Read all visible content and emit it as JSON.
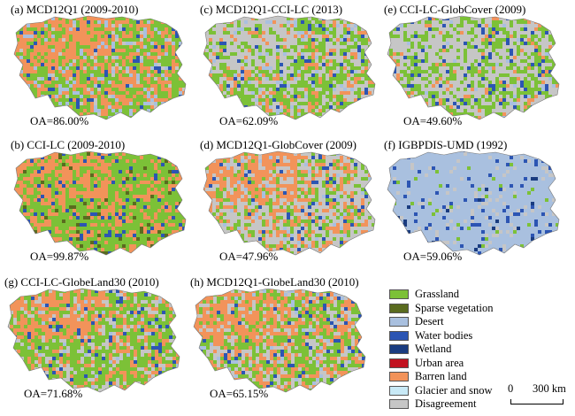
{
  "panels": [
    {
      "id": "a",
      "title": "(a) MCD12Q1 (2009-2010)",
      "oa": "OA=86.00%",
      "mix": {
        "Grassland": 0.45,
        "Desert": 0.12,
        "Water bodies": 0.06,
        "Barren land": 0.32,
        "Disagreement": 0.05
      },
      "west_bias": "Barren land"
    },
    {
      "id": "c",
      "title": "(c) MCD12Q1-CCI-LC (2013)",
      "oa": "OA=62.09%",
      "mix": {
        "Grassland": 0.42,
        "Desert": 0.06,
        "Water bodies": 0.05,
        "Barren land": 0.17,
        "Disagreement": 0.3
      },
      "west_bias": "Disagreement"
    },
    {
      "id": "e",
      "title": "(e) CCI-LC-GlobCover (2009)",
      "oa": "OA=49.60%",
      "mix": {
        "Grassland": 0.4,
        "Desert": 0.03,
        "Water bodies": 0.07,
        "Barren land": 0.08,
        "Disagreement": 0.42
      },
      "west_bias": "Disagreement"
    },
    {
      "id": "b",
      "title": "(b) CCI-LC (2009-2010)",
      "oa": "OA=99.87%",
      "mix": {
        "Grassland": 0.6,
        "Sparse vegetation": 0.05,
        "Water bodies": 0.08,
        "Barren land": 0.27
      },
      "west_bias": "Barren land"
    },
    {
      "id": "d",
      "title": "(d) MCD12Q1-GlobCover (2009)",
      "oa": "OA=47.96%",
      "mix": {
        "Grassland": 0.22,
        "Desert": 0.04,
        "Water bodies": 0.05,
        "Barren land": 0.24,
        "Disagreement": 0.45
      },
      "west_bias": "Barren land"
    },
    {
      "id": "f",
      "title": "(f) IGBPDIS-UMD (1992)",
      "oa": "OA=59.06%",
      "mix": {
        "Grassland": 0.03,
        "Desert": 0.8,
        "Water bodies": 0.07,
        "Wetland": 0.02,
        "Disagreement": 0.08
      },
      "west_bias": "Desert"
    },
    {
      "id": "g",
      "title": "(g) CCI-LC-GlobeLand30 (2010)",
      "oa": "OA=71.68%",
      "mix": {
        "Grassland": 0.5,
        "Desert": 0.03,
        "Water bodies": 0.07,
        "Barren land": 0.22,
        "Disagreement": 0.18
      },
      "west_bias": "Barren land"
    },
    {
      "id": "h",
      "title": "(h) MCD12Q1-GlobeLand30 (2010)",
      "oa": "OA=65.15%",
      "mix": {
        "Grassland": 0.38,
        "Desert": 0.04,
        "Water bodies": 0.06,
        "Barren land": 0.28,
        "Disagreement": 0.24
      },
      "west_bias": "Barren land"
    }
  ],
  "legend": [
    {
      "label": "Grassland",
      "color": "#7cc137"
    },
    {
      "label": "Sparse vegetation",
      "color": "#5a6b1f"
    },
    {
      "label": "Desert",
      "color": "#a9c0df"
    },
    {
      "label": "Water bodies",
      "color": "#2c55b3"
    },
    {
      "label": "Wetland",
      "color": "#1a3c80"
    },
    {
      "label": "Urban area",
      "color": "#c1121f"
    },
    {
      "label": "Barren land",
      "color": "#f2935a"
    },
    {
      "label": "Glacier and snow",
      "color": "#c8e9f6"
    },
    {
      "label": "Disagreement",
      "color": "#c6c6c6"
    }
  ],
  "scale_bar": {
    "start": "0",
    "end": "300 km"
  }
}
